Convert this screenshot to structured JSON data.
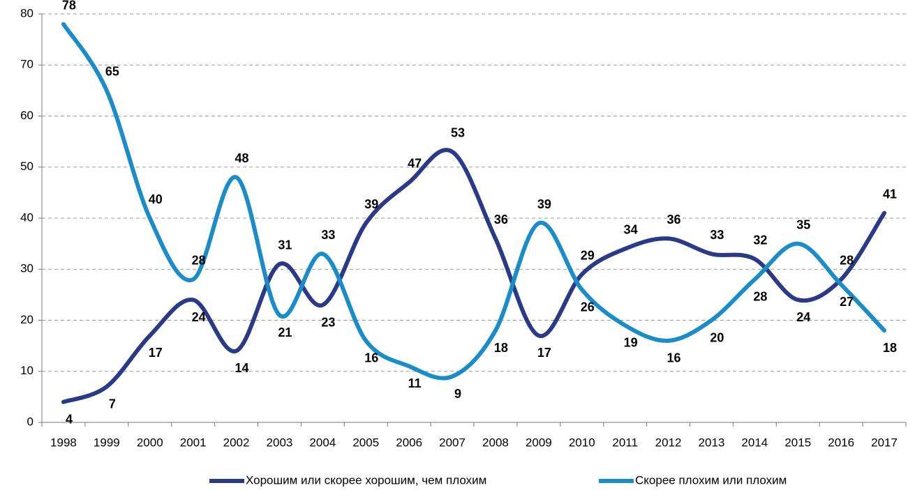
{
  "chart_data": {
    "type": "line",
    "categories": [
      "1998",
      "1999",
      "2000",
      "2001",
      "2002",
      "2003",
      "2004",
      "2005",
      "2006",
      "2007",
      "2008",
      "2009",
      "2010",
      "2011",
      "2012",
      "2013",
      "2014",
      "2015",
      "2016",
      "2017"
    ],
    "series": [
      {
        "name": "Хорошим или скорее хорошим, чем плохим",
        "color": "#2b3a86",
        "values": [
          4,
          7,
          17,
          24,
          14,
          31,
          23,
          39,
          47,
          53,
          36,
          17,
          29,
          34,
          36,
          33,
          32,
          24,
          28,
          41
        ]
      },
      {
        "name": "Скорее плохим или плохим",
        "color": "#1a8cc8",
        "values": [
          78,
          65,
          40,
          28,
          48,
          21,
          33,
          16,
          11,
          9,
          18,
          39,
          26,
          19,
          16,
          20,
          28,
          35,
          27,
          18
        ]
      }
    ],
    "ylim": [
      0,
      80
    ],
    "yticks": [
      0,
      10,
      20,
      30,
      40,
      50,
      60,
      70,
      80
    ],
    "grid": true,
    "legend": "bottom"
  }
}
